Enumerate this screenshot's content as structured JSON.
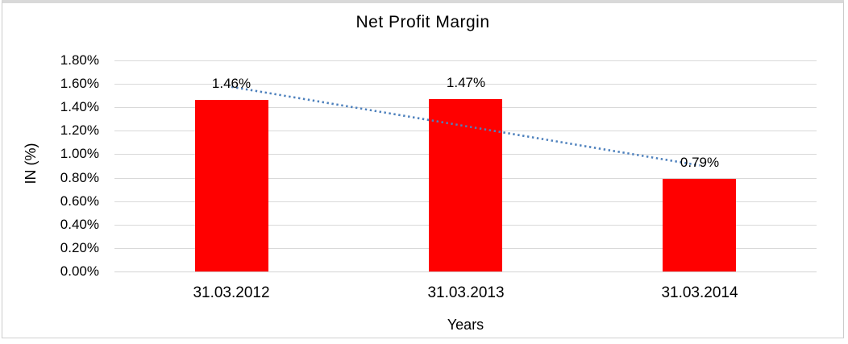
{
  "chart_data": {
    "type": "bar",
    "title": "Net Profit Margin",
    "categories": [
      "31.03.2012",
      "31.03.2013",
      "31.03.2014"
    ],
    "values": [
      1.46,
      1.47,
      0.79
    ],
    "data_labels": [
      "1.46%",
      "1.47%",
      "0.79%"
    ],
    "xlabel": "Years",
    "ylabel": "IN (%)",
    "ylim": [
      0,
      1.8
    ],
    "ytick_step": 0.2,
    "ytick_labels_top_to_bottom": [
      "1.80%",
      "1.60%",
      "1.40%",
      "1.20%",
      "1.00%",
      "0.80%",
      "0.60%",
      "0.40%",
      "0.20%",
      "0.00%"
    ],
    "grid": true,
    "legend": "none",
    "bar_color": "#ff0000",
    "gridline_color": "#d9d9d9",
    "axis_line_color": "#d3d3d3",
    "text_color": "#000000",
    "trendline": {
      "type": "linear",
      "style": "dotted",
      "color": "#4e81bd",
      "y_start": 1.575,
      "y_end": 0.905
    }
  }
}
